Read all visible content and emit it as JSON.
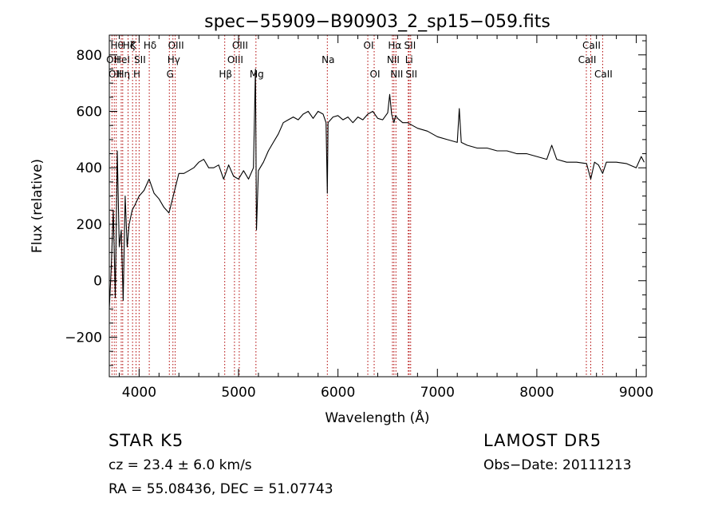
{
  "chart_data": {
    "type": "line",
    "title": "spec−55909−B90903_2_sp15−059.fits",
    "xlabel": "Wavelength (Å)",
    "ylabel": "Flux (relative)",
    "xlim": [
      3700,
      9100
    ],
    "ylim": [
      -340,
      870
    ],
    "xticks": [
      4000,
      5000,
      6000,
      7000,
      8000,
      9000
    ],
    "xtick_labels": [
      "4000",
      "5000",
      "6000",
      "7000",
      "8000",
      "9000"
    ],
    "yticks": [
      -200,
      0,
      200,
      400,
      600,
      800
    ],
    "ytick_labels": [
      "−200",
      "0",
      "200",
      "400",
      "600",
      "800"
    ],
    "line_color": "#000000",
    "marker_color": "#b00000",
    "series": [
      {
        "x": [
          3700,
          3720,
          3740,
          3760,
          3780,
          3800,
          3820,
          3840,
          3860,
          3880,
          3900,
          3930,
          3960,
          4000,
          4050,
          4100,
          4150,
          4200,
          4250,
          4300,
          4350,
          4400,
          4450,
          4500,
          4550,
          4600,
          4650,
          4700,
          4750,
          4800,
          4850,
          4900,
          4950,
          5000,
          5050,
          5100,
          5150,
          5170,
          5180,
          5200,
          5250,
          5300,
          5350,
          5400,
          5450,
          5500,
          5550,
          5600,
          5650,
          5700,
          5750,
          5800,
          5850,
          5880,
          5893,
          5900,
          5950,
          6000,
          6050,
          6100,
          6150,
          6200,
          6250,
          6300,
          6350,
          6400,
          6450,
          6500,
          6520,
          6540,
          6563,
          6580,
          6600,
          6650,
          6700,
          6750,
          6800,
          6900,
          7000,
          7100,
          7200,
          7220,
          7240,
          7300,
          7400,
          7500,
          7600,
          7700,
          7800,
          7900,
          8000,
          8100,
          8150,
          8200,
          8300,
          8400,
          8500,
          8542,
          8580,
          8620,
          8662,
          8700,
          8800,
          8900,
          9000,
          9050,
          9080
        ],
        "y": [
          -100,
          50,
          250,
          -60,
          460,
          120,
          180,
          -70,
          300,
          120,
          200,
          250,
          270,
          300,
          320,
          360,
          310,
          290,
          260,
          240,
          310,
          380,
          380,
          390,
          400,
          420,
          430,
          400,
          400,
          410,
          360,
          410,
          370,
          360,
          390,
          360,
          400,
          750,
          180,
          390,
          420,
          460,
          490,
          520,
          560,
          570,
          580,
          570,
          590,
          600,
          575,
          600,
          590,
          560,
          310,
          560,
          580,
          585,
          570,
          580,
          560,
          580,
          570,
          590,
          600,
          575,
          570,
          595,
          660,
          590,
          560,
          585,
          575,
          560,
          560,
          550,
          540,
          530,
          510,
          500,
          490,
          610,
          490,
          480,
          470,
          470,
          460,
          460,
          450,
          450,
          440,
          430,
          480,
          430,
          420,
          420,
          415,
          360,
          420,
          410,
          380,
          420,
          420,
          415,
          400,
          440,
          420
        ]
      }
    ],
    "line_markers": [
      {
        "x": 3727,
        "label": "OII",
        "row": 1
      },
      {
        "x": 3750,
        "label": "OII",
        "row": 2
      },
      {
        "x": 3770,
        "label": "Hθ",
        "row": 0
      },
      {
        "x": 3820,
        "label": "HeI",
        "row": 1
      },
      {
        "x": 3835,
        "label": "Hη",
        "row": 2
      },
      {
        "x": 3889,
        "label": "Hζ",
        "row": 0
      },
      {
        "x": 3934,
        "label": "K",
        "row": 0
      },
      {
        "x": 3969,
        "label": "H",
        "row": 2
      },
      {
        "x": 4000,
        "label": "SII",
        "row": 1
      },
      {
        "x": 4102,
        "label": "Hδ",
        "row": 0
      },
      {
        "x": 4304,
        "label": "G",
        "row": 2
      },
      {
        "x": 4340,
        "label": "Hγ",
        "row": 1
      },
      {
        "x": 4363,
        "label": "OIII",
        "row": 0
      },
      {
        "x": 4861,
        "label": "Hβ",
        "row": 2
      },
      {
        "x": 4959,
        "label": "OIII",
        "row": 1
      },
      {
        "x": 5007,
        "label": "OIII",
        "row": 0
      },
      {
        "x": 5175,
        "label": "Mg",
        "row": 2
      },
      {
        "x": 5893,
        "label": "Na",
        "row": 1
      },
      {
        "x": 6300,
        "label": "OI",
        "row": 0
      },
      {
        "x": 6364,
        "label": "OI",
        "row": 2
      },
      {
        "x": 6548,
        "label": "NII",
        "row": 1
      },
      {
        "x": 6563,
        "label": "Hα",
        "row": 0
      },
      {
        "x": 6583,
        "label": "NII",
        "row": 2
      },
      {
        "x": 6707,
        "label": "Li",
        "row": 1
      },
      {
        "x": 6716,
        "label": "SII",
        "row": 0
      },
      {
        "x": 6731,
        "label": "SII",
        "row": 2
      },
      {
        "x": 8498,
        "label": "CaII",
        "row": 1
      },
      {
        "x": 8542,
        "label": "CaII",
        "row": 0
      },
      {
        "x": 8662,
        "label": "CaII",
        "row": 2
      }
    ]
  },
  "footer": {
    "class_label": "STAR    K5",
    "survey": "LAMOST  DR5",
    "cz": "cz = 23.4 ± 6.0 km/s",
    "obs_date": "Obs−Date: 20111213",
    "radec": "RA =  55.08436, DEC =  51.07743"
  }
}
